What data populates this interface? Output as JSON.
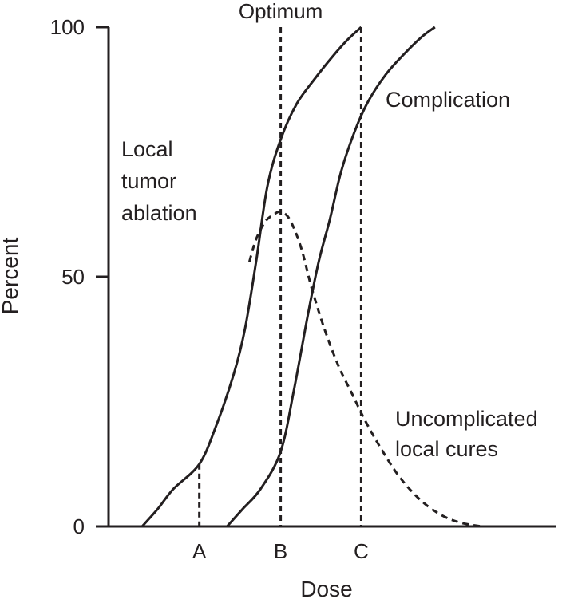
{
  "chart_data": {
    "type": "line",
    "title": "",
    "xlabel": "Dose",
    "ylabel": "Percent",
    "ylim": [
      0,
      100
    ],
    "xlim": [
      0,
      100
    ],
    "y_ticks": [
      0,
      50,
      100
    ],
    "x_markers": [
      {
        "label": "A",
        "x": 20.3
      },
      {
        "label": "B",
        "x": 38.5
      },
      {
        "label": "C",
        "x": 56.5
      }
    ],
    "optimum_label": "Optimum",
    "series": [
      {
        "name": "Local tumor ablation",
        "style": "solid",
        "x": [
          7.5,
          11,
          14.5,
          20.3,
          24,
          28,
          30.5,
          33,
          35.5,
          38.5,
          42,
          46,
          50,
          53.5,
          56.5
        ],
        "y": [
          0,
          3.5,
          7.5,
          12.5,
          20,
          30.5,
          39.5,
          53,
          68,
          77.5,
          84.5,
          89.5,
          94,
          97.5,
          100
        ]
      },
      {
        "name": "Complication",
        "style": "solid",
        "x": [
          26.5,
          30,
          34,
          38.5,
          41.5,
          44.5,
          47,
          49.5,
          52,
          55,
          58,
          62,
          66,
          70,
          73
        ],
        "y": [
          0,
          3.5,
          7.5,
          15,
          27.5,
          42,
          53,
          61.5,
          71,
          79,
          85,
          90.5,
          94.5,
          98,
          100
        ]
      },
      {
        "name": "Uncomplicated local cures",
        "style": "dashed",
        "x": [
          31.5,
          33,
          35,
          37,
          38.5,
          40.5,
          43,
          45.5,
          48.5,
          51.5,
          54.5,
          57.5,
          61,
          65,
          69.5,
          74,
          78.5,
          83.5
        ],
        "y": [
          53,
          57.5,
          61,
          62.5,
          63,
          61.5,
          56,
          47.5,
          39,
          32,
          26.5,
          21,
          15.5,
          10,
          5.5,
          2.5,
          0.8,
          0
        ]
      }
    ],
    "annotations": [
      {
        "id": "local",
        "lines": [
          "Local",
          "tumor",
          "ablation"
        ]
      },
      {
        "id": "complication",
        "lines": [
          "Complication"
        ]
      },
      {
        "id": "uncomplicated",
        "lines": [
          "Uncomplicated",
          "local cures"
        ]
      }
    ],
    "grid": false,
    "legend": "none"
  }
}
